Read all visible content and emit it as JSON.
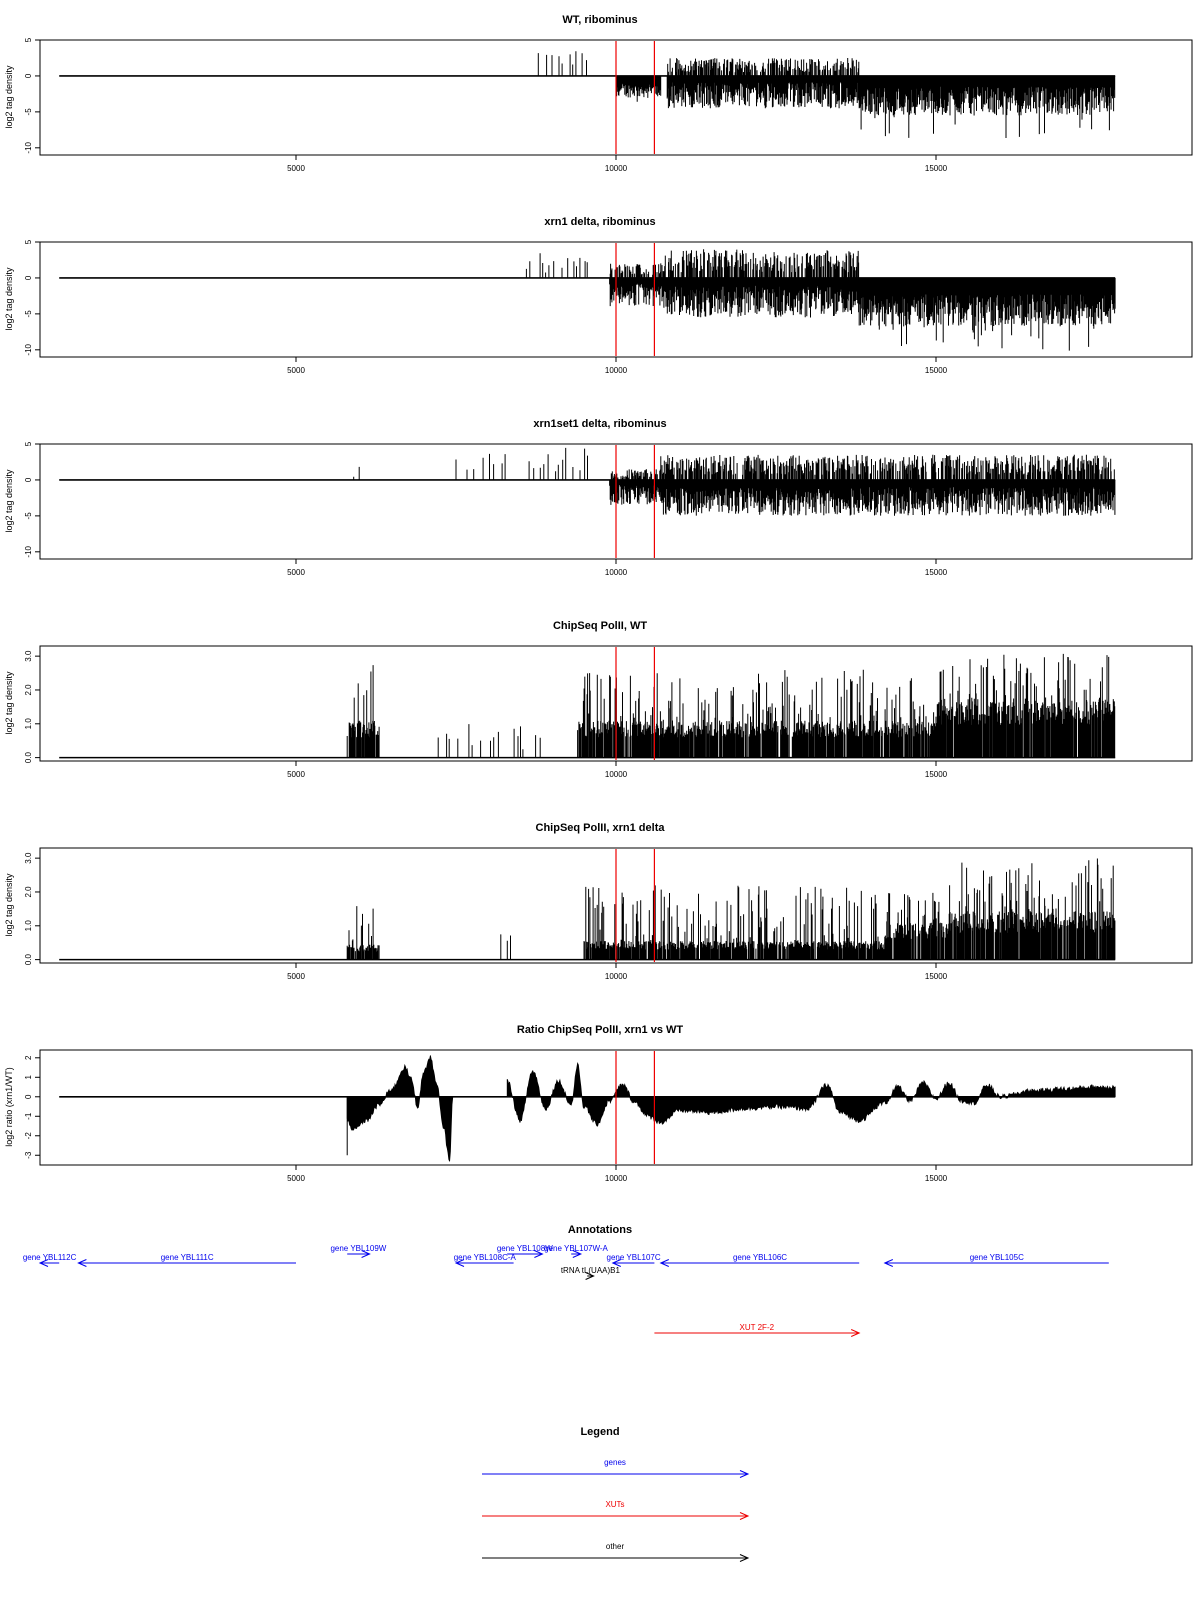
{
  "colors": {
    "gene": "#0000ee",
    "xut": "#ee0000",
    "other": "#000000",
    "marker": "#ee0000",
    "signal": "#000000"
  },
  "chart_data": [
    {
      "type": "bar",
      "title": "WT, ribominus",
      "ylabel": "log2 tag density",
      "xlim": [
        1000,
        19000
      ],
      "ylim": [
        -11,
        5
      ],
      "xticks": [
        5000,
        10000,
        15000
      ],
      "yticks": [
        {
          "v": 5,
          "label": "5"
        },
        {
          "v": 0,
          "label": "0"
        },
        {
          "v": -5,
          "label": "-5"
        },
        {
          "v": -10,
          "label": "-10"
        }
      ],
      "markers": [
        10000,
        10600
      ],
      "segments": [
        {
          "x0": 8600,
          "x1": 9600,
          "kind": "sparse_pos",
          "max": 3.5
        },
        {
          "x0": 10000,
          "x1": 10700,
          "kind": "neg",
          "mean": -2,
          "amp": 2
        },
        {
          "x0": 10800,
          "x1": 13800,
          "kind": "both",
          "pos": 2.5,
          "neg": -4.5
        },
        {
          "x0": 13800,
          "x1": 17800,
          "kind": "neg",
          "mean": -3.5,
          "amp": 4
        }
      ]
    },
    {
      "type": "bar",
      "title": "xrn1 delta, ribominus",
      "ylabel": "log2 tag density",
      "xlim": [
        1000,
        19000
      ],
      "ylim": [
        -11,
        5
      ],
      "xticks": [
        5000,
        10000,
        15000
      ],
      "yticks": [
        {
          "v": 5,
          "label": "5"
        },
        {
          "v": 0,
          "label": "0"
        },
        {
          "v": -5,
          "label": "-5"
        },
        {
          "v": -10,
          "label": "-10"
        }
      ],
      "markers": [
        10000,
        10600
      ],
      "segments": [
        {
          "x0": 8600,
          "x1": 9600,
          "kind": "sparse_pos",
          "max": 3.5
        },
        {
          "x0": 9900,
          "x1": 10700,
          "kind": "both",
          "pos": 2.0,
          "neg": -4.0
        },
        {
          "x0": 10700,
          "x1": 13800,
          "kind": "both",
          "pos": 4.0,
          "neg": -5.5
        },
        {
          "x0": 13800,
          "x1": 17800,
          "kind": "neg",
          "mean": -4.5,
          "amp": 4.5
        }
      ]
    },
    {
      "type": "bar",
      "title": "xrn1set1 delta, ribominus",
      "ylabel": "log2 tag density",
      "xlim": [
        1000,
        19000
      ],
      "ylim": [
        -11,
        5
      ],
      "xticks": [
        5000,
        10000,
        15000
      ],
      "yticks": [
        {
          "v": 5,
          "label": "5"
        },
        {
          "v": 0,
          "label": "0"
        },
        {
          "v": -5,
          "label": "-5"
        },
        {
          "v": -10,
          "label": "-10"
        }
      ],
      "markers": [
        10000,
        10600
      ],
      "segments": [
        {
          "x0": 5800,
          "x1": 6000,
          "kind": "sparse_pos",
          "max": 2.2
        },
        {
          "x0": 7500,
          "x1": 9600,
          "kind": "sparse_pos",
          "max": 4.5
        },
        {
          "x0": 9900,
          "x1": 10700,
          "kind": "both",
          "pos": 1.5,
          "neg": -3.5
        },
        {
          "x0": 10700,
          "x1": 17800,
          "kind": "both",
          "pos": 3.5,
          "neg": -5.0
        }
      ]
    },
    {
      "type": "bar",
      "title": "ChipSeq PolII, WT",
      "ylabel": "log2 tag density",
      "xlim": [
        1000,
        19000
      ],
      "ylim": [
        -0.1,
        3.3
      ],
      "xticks": [
        5000,
        10000,
        15000
      ],
      "yticks": [
        {
          "v": 3,
          "label": "3.0"
        },
        {
          "v": 2,
          "label": "2.0"
        },
        {
          "v": 1,
          "label": "1.0"
        },
        {
          "v": 0,
          "label": "0.0"
        }
      ],
      "markers": [
        10000,
        10600
      ],
      "segments": [
        {
          "x0": 5800,
          "x1": 6300,
          "kind": "pos",
          "base": 1.0,
          "max": 2.8
        },
        {
          "x0": 7000,
          "x1": 9000,
          "kind": "sparse_pos",
          "max": 1.0
        },
        {
          "x0": 9400,
          "x1": 15000,
          "kind": "pos",
          "base": 1.0,
          "max": 2.6
        },
        {
          "x0": 15000,
          "x1": 17800,
          "kind": "pos",
          "base": 1.6,
          "max": 3.1
        }
      ]
    },
    {
      "type": "bar",
      "title": "ChipSeq PolII, xrn1 delta",
      "ylabel": "log2 tag density",
      "xlim": [
        1000,
        19000
      ],
      "ylim": [
        -0.1,
        3.3
      ],
      "xticks": [
        5000,
        10000,
        15000
      ],
      "yticks": [
        {
          "v": 3,
          "label": "3.0"
        },
        {
          "v": 2,
          "label": "2.0"
        },
        {
          "v": 1,
          "label": "1.0"
        },
        {
          "v": 0,
          "label": "0.0"
        }
      ],
      "markers": [
        10000,
        10600
      ],
      "segments": [
        {
          "x0": 5800,
          "x1": 6300,
          "kind": "pos",
          "base": 0.4,
          "max": 1.6
        },
        {
          "x0": 8200,
          "x1": 8600,
          "kind": "sparse_pos",
          "max": 1.1
        },
        {
          "x0": 9500,
          "x1": 14200,
          "kind": "pos",
          "base": 0.5,
          "max": 2.2
        },
        {
          "x0": 14200,
          "x1": 15200,
          "kind": "pos",
          "base": 1.0,
          "max": 2.0
        },
        {
          "x0": 15200,
          "x1": 17800,
          "kind": "pos",
          "base": 1.3,
          "max": 3.0
        }
      ]
    },
    {
      "type": "area",
      "title": "Ratio ChipSeq PolII, xrn1 vs WT",
      "ylabel": "log2 ratio (xrn1/WT)",
      "xlim": [
        1000,
        19000
      ],
      "ylim": [
        -3.5,
        2.4
      ],
      "xticks": [
        5000,
        10000,
        15000
      ],
      "yticks": [
        {
          "v": 2,
          "label": "2"
        },
        {
          "v": 1,
          "label": "1"
        },
        {
          "v": 0,
          "label": "0"
        },
        {
          "v": -1,
          "label": "-1"
        },
        {
          "v": -2,
          "label": "-2"
        },
        {
          "v": -3,
          "label": "-3"
        }
      ],
      "markers": [
        10000,
        10600
      ],
      "points": [
        [
          5800,
          -1.2
        ],
        [
          5900,
          -1.7
        ],
        [
          6100,
          -1.2
        ],
        [
          6300,
          -0.4
        ],
        [
          6500,
          0.4
        ],
        [
          6700,
          1.5
        ],
        [
          6800,
          0.9
        ],
        [
          6900,
          -0.5
        ],
        [
          7000,
          1.3
        ],
        [
          7100,
          2.0
        ],
        [
          7200,
          0.6
        ],
        [
          7300,
          -1.5
        ],
        [
          7400,
          -3.2
        ],
        [
          7450,
          0
        ],
        [
          8300,
          0.8
        ],
        [
          8500,
          -1.2
        ],
        [
          8700,
          1.3
        ],
        [
          8900,
          -0.6
        ],
        [
          9100,
          0.8
        ],
        [
          9300,
          -0.4
        ],
        [
          9400,
          1.6
        ],
        [
          9500,
          -0.5
        ],
        [
          9700,
          -1.4
        ],
        [
          9900,
          -0.2
        ],
        [
          10100,
          0.6
        ],
        [
          10300,
          -0.3
        ],
        [
          10500,
          -1.0
        ],
        [
          10700,
          -1.3
        ],
        [
          11000,
          -0.7
        ],
        [
          11500,
          -0.8
        ],
        [
          12000,
          -0.6
        ],
        [
          12500,
          -0.5
        ],
        [
          13000,
          -0.6
        ],
        [
          13300,
          0.6
        ],
        [
          13500,
          -0.8
        ],
        [
          13800,
          -1.2
        ],
        [
          14200,
          -0.3
        ],
        [
          14400,
          0.5
        ],
        [
          14600,
          -0.2
        ],
        [
          14800,
          0.7
        ],
        [
          15000,
          -0.1
        ],
        [
          15200,
          0.7
        ],
        [
          15400,
          -0.2
        ],
        [
          15600,
          -0.3
        ],
        [
          15800,
          0.6
        ],
        [
          16000,
          0.0
        ],
        [
          16500,
          0.3
        ],
        [
          17000,
          0.4
        ],
        [
          17500,
          0.5
        ],
        [
          17800,
          0.5
        ]
      ]
    }
  ],
  "annotations": {
    "title": "Annotations",
    "features": [
      {
        "label": "gene YBL112C",
        "type": "gene",
        "x0": 1300,
        "x1": 1000,
        "dir": "left",
        "row": 0
      },
      {
        "label": "gene YBL111C",
        "type": "gene",
        "x0": 5000,
        "x1": 1600,
        "dir": "left",
        "row": 0
      },
      {
        "label": "gene YBL109W",
        "type": "gene",
        "x0": 5800,
        "x1": 6150,
        "dir": "right",
        "row": -1
      },
      {
        "label": "gene YBL108C-A",
        "type": "gene",
        "x0": 8400,
        "x1": 7500,
        "dir": "left",
        "row": 0
      },
      {
        "label": "gene YBL108W",
        "type": "gene",
        "x0": 8300,
        "x1": 8850,
        "dir": "right",
        "row": -1
      },
      {
        "label": "gene YBL107W-A",
        "type": "gene",
        "x0": 9300,
        "x1": 9450,
        "dir": "right",
        "row": -1
      },
      {
        "label": "gene YBL107C",
        "type": "gene",
        "x0": 10600,
        "x1": 9950,
        "dir": "left",
        "row": 0
      },
      {
        "label": "tRNA tL(UAA)B1",
        "type": "other",
        "x0": 9550,
        "x1": 9650,
        "dir": "right",
        "row": 1
      },
      {
        "label": "gene YBL106C",
        "type": "gene",
        "x0": 13800,
        "x1": 10700,
        "dir": "left",
        "row": 0
      },
      {
        "label": "gene YBL105C",
        "type": "gene",
        "x0": 17700,
        "x1": 14200,
        "dir": "left",
        "row": 0
      },
      {
        "label": "XUT 2F-2",
        "type": "xut",
        "x0": 10600,
        "x1": 13800,
        "dir": "right",
        "row": 6
      }
    ]
  },
  "legend": {
    "title": "Legend",
    "items": [
      {
        "label": "genes",
        "type": "gene"
      },
      {
        "label": "XUTs",
        "type": "xut"
      },
      {
        "label": "other",
        "type": "other"
      }
    ]
  }
}
